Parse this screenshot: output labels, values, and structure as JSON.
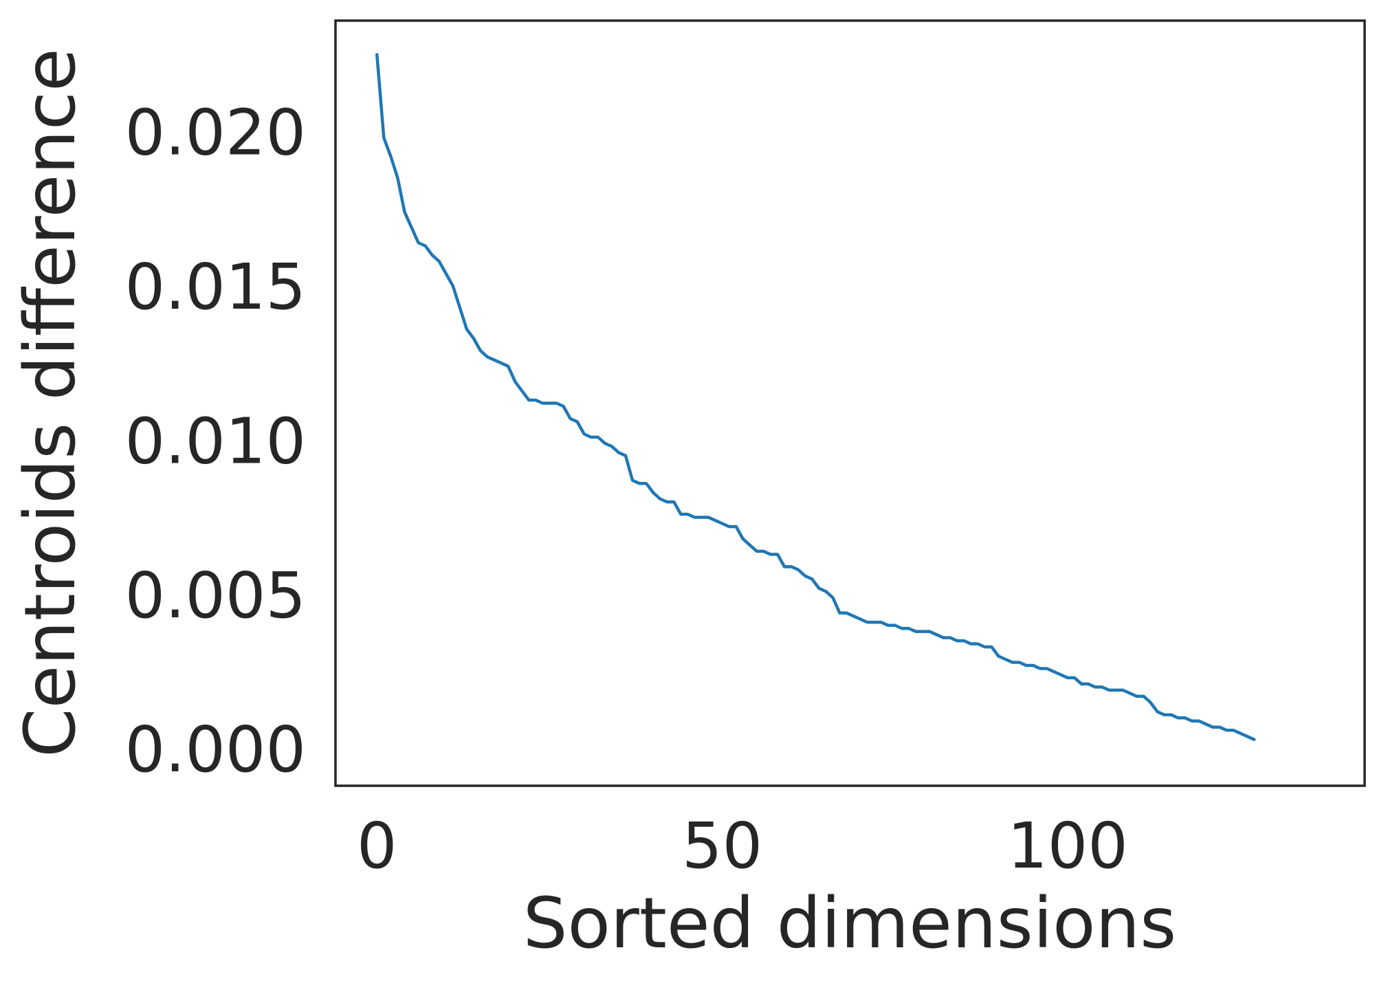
{
  "chart_data": {
    "type": "line",
    "title": "",
    "xlabel": "Sorted dimensions",
    "ylabel": "Centroids difference",
    "xlim": [
      -6,
      143
    ],
    "ylim": [
      -0.0012,
      0.0236
    ],
    "x_ticks": [
      0,
      50,
      100
    ],
    "x_tick_labels": [
      "0",
      "50",
      "100"
    ],
    "y_ticks": [
      0.0,
      0.005,
      0.01,
      0.015,
      0.02
    ],
    "y_tick_labels": [
      "0.000",
      "0.005",
      "0.010",
      "0.015",
      "0.020"
    ],
    "grid": false,
    "legend": "none",
    "colors": {
      "series": "#1f77b4",
      "text": "#262626",
      "frame": "#262626",
      "background": "#ffffff"
    },
    "series": [
      {
        "color": "#1f77b4",
        "x": [
          0,
          1,
          2,
          3,
          4,
          5,
          6,
          7,
          8,
          9,
          10,
          11,
          12,
          13,
          14,
          15,
          16,
          17,
          18,
          19,
          20,
          21,
          22,
          23,
          24,
          25,
          26,
          27,
          28,
          29,
          30,
          31,
          32,
          33,
          34,
          35,
          36,
          37,
          38,
          39,
          40,
          41,
          42,
          43,
          44,
          45,
          46,
          47,
          48,
          49,
          50,
          51,
          52,
          53,
          54,
          55,
          56,
          57,
          58,
          59,
          60,
          61,
          62,
          63,
          64,
          65,
          66,
          67,
          68,
          69,
          70,
          71,
          72,
          73,
          74,
          75,
          76,
          77,
          78,
          79,
          80,
          81,
          82,
          83,
          84,
          85,
          86,
          87,
          88,
          89,
          90,
          91,
          92,
          93,
          94,
          95,
          96,
          97,
          98,
          99,
          100,
          101,
          102,
          103,
          104,
          105,
          106,
          107,
          108,
          109,
          110,
          111,
          112,
          113,
          114,
          115,
          116,
          117,
          118,
          119,
          120,
          121,
          122,
          123,
          124,
          125,
          126,
          127
        ],
        "y": [
          0.0225,
          0.0198,
          0.0192,
          0.0185,
          0.0174,
          0.0169,
          0.0164,
          0.0163,
          0.016,
          0.0158,
          0.0154,
          0.015,
          0.0143,
          0.0136,
          0.0133,
          0.0129,
          0.0127,
          0.0126,
          0.0125,
          0.0124,
          0.0119,
          0.0116,
          0.0113,
          0.0113,
          0.0112,
          0.0112,
          0.0112,
          0.0111,
          0.0107,
          0.0106,
          0.0102,
          0.0101,
          0.0101,
          0.0099,
          0.0098,
          0.0096,
          0.0095,
          0.0087,
          0.0086,
          0.0086,
          0.0083,
          0.0081,
          0.008,
          0.008,
          0.0076,
          0.0076,
          0.0075,
          0.0075,
          0.0075,
          0.0074,
          0.0073,
          0.0072,
          0.0072,
          0.0068,
          0.0066,
          0.0064,
          0.0064,
          0.0063,
          0.0063,
          0.0059,
          0.0059,
          0.0058,
          0.0056,
          0.0055,
          0.0052,
          0.0051,
          0.0049,
          0.0044,
          0.0044,
          0.0043,
          0.0042,
          0.0041,
          0.0041,
          0.0041,
          0.004,
          0.004,
          0.0039,
          0.0039,
          0.0038,
          0.0038,
          0.0038,
          0.0037,
          0.0036,
          0.0036,
          0.0035,
          0.0035,
          0.0034,
          0.0034,
          0.0033,
          0.0033,
          0.003,
          0.0029,
          0.0028,
          0.0028,
          0.0027,
          0.0027,
          0.0026,
          0.0026,
          0.0025,
          0.0024,
          0.0023,
          0.0023,
          0.0021,
          0.0021,
          0.002,
          0.002,
          0.0019,
          0.0019,
          0.0019,
          0.0018,
          0.0017,
          0.0017,
          0.0015,
          0.0012,
          0.0011,
          0.0011,
          0.001,
          0.001,
          0.0009,
          0.0009,
          0.0008,
          0.0007,
          0.0007,
          0.0006,
          0.0006,
          0.0005,
          0.0004,
          0.0003
        ]
      }
    ]
  }
}
